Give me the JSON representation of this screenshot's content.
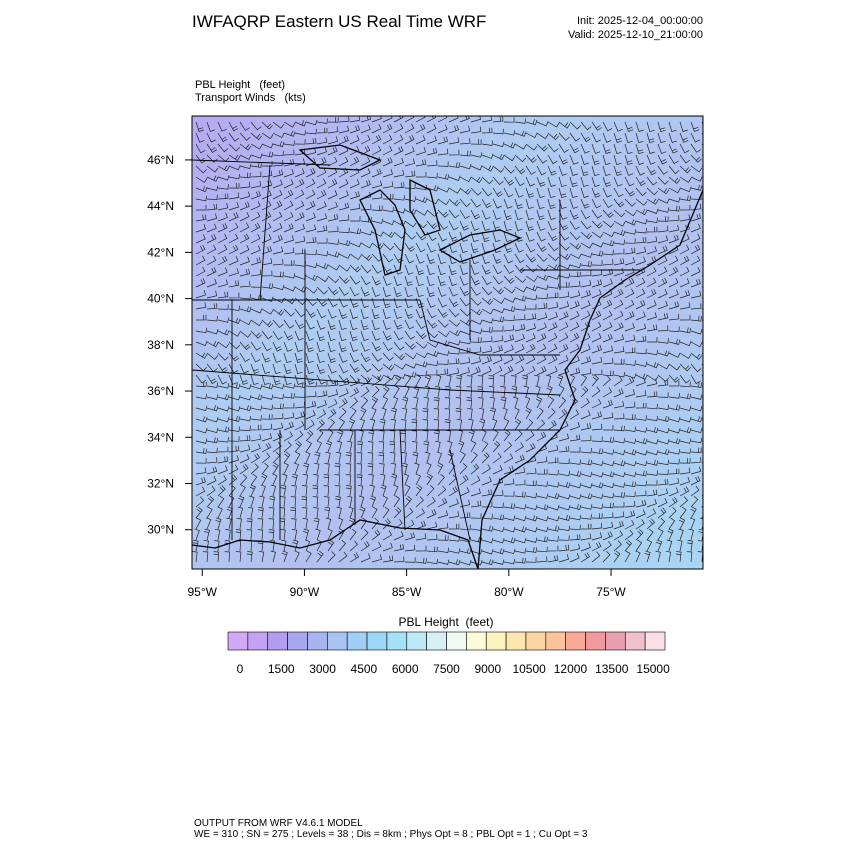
{
  "header": {
    "title": "IWFAQRP Eastern US Real Time WRF",
    "init": "Init: 2025-12-04_00:00:00",
    "valid": "Valid: 2025-12-10_21:00:00"
  },
  "field_labels": [
    "PBL Height   (feet)",
    "Transport Winds   (kts)"
  ],
  "map": {
    "xlim": [
      -95.5,
      -70.5
    ],
    "ylim": [
      28.3,
      47.9
    ],
    "xticks": [
      {
        "value": -95,
        "label": "95°W"
      },
      {
        "value": -90,
        "label": "90°W"
      },
      {
        "value": -85,
        "label": "85°W"
      },
      {
        "value": -80,
        "label": "80°W"
      },
      {
        "value": -75,
        "label": "75°W"
      }
    ],
    "yticks": [
      {
        "value": 30,
        "label": "30°N"
      },
      {
        "value": 32,
        "label": "32°N"
      },
      {
        "value": 34,
        "label": "34°N"
      },
      {
        "value": 36,
        "label": "36°N"
      },
      {
        "value": 38,
        "label": "38°N"
      },
      {
        "value": 40,
        "label": "40°N"
      },
      {
        "value": 42,
        "label": "42°N"
      },
      {
        "value": 44,
        "label": "44°N"
      },
      {
        "value": 46,
        "label": "46°N"
      }
    ]
  },
  "colorbar": {
    "title": "PBL Height  (feet)",
    "ticks": [
      0,
      1500,
      3000,
      4500,
      6000,
      7500,
      9000,
      10500,
      12000,
      13500,
      15000
    ],
    "colors": [
      "#d2a8f5",
      "#c4a2f3",
      "#b29cf0",
      "#a8a6ef",
      "#a8b4ef",
      "#a8c4f2",
      "#a2cdf4",
      "#9cd8f6",
      "#a4e0f6",
      "#bde8f5",
      "#d6f0f5",
      "#f0f8f2",
      "#fbfbd8",
      "#fbf2bc",
      "#fbe6ae",
      "#fbd6a4",
      "#fbc29c",
      "#f8aa98",
      "#f09aa0",
      "#e8a0b0",
      "#f0c0cc",
      "#fae0e6"
    ]
  },
  "footer": [
    "OUTPUT FROM WRF V4.6.1 MODEL",
    "WE = 310 ; SN = 275 ; Levels = 38 ; Dis = 8km ; Phys Opt = 8 ; PBL Opt = 1 ; Cu Opt = 3"
  ]
}
